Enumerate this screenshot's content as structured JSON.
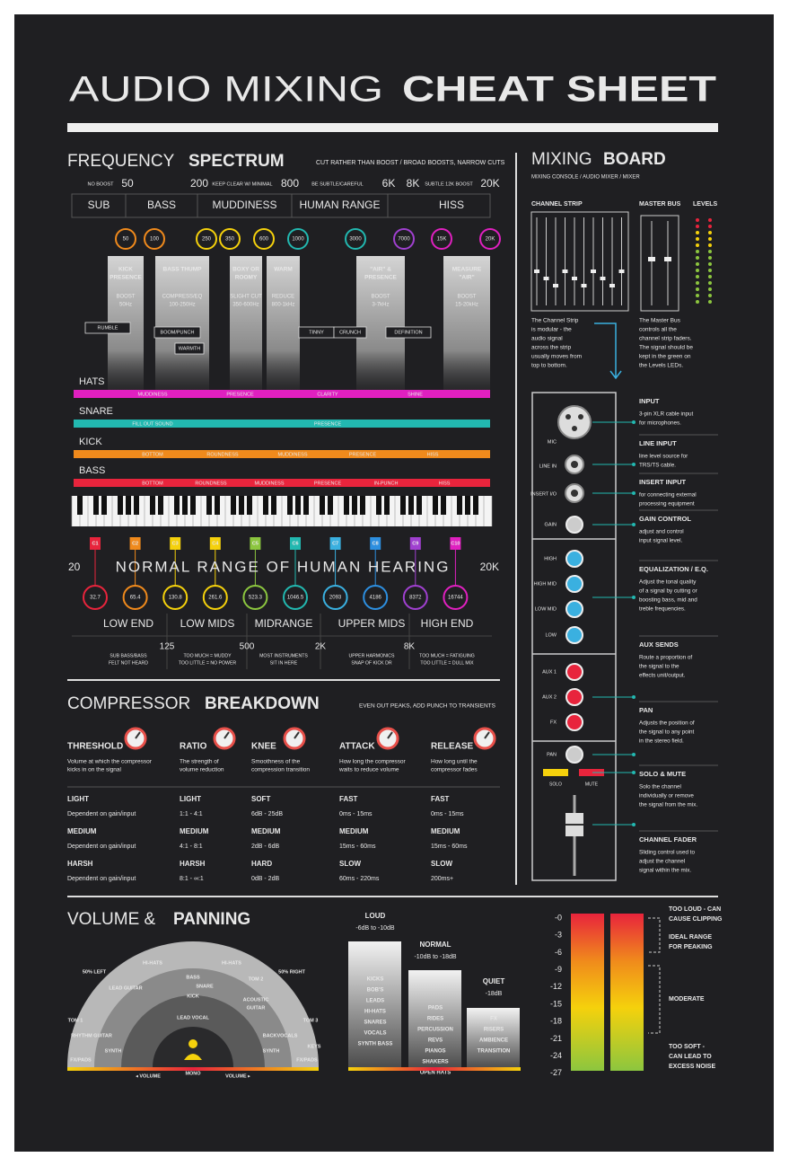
{
  "header": {
    "title_light": "AUDIO MIXING",
    "title_bold": "CHEAT SHEET"
  },
  "frequency": {
    "title": "FREQUENCY",
    "title_accent": "SPECTRUM",
    "note": "CUT RATHER THAN BOOST / BROAD BOOSTS, NARROW CUTS",
    "scale": [
      "NO BOOST",
      "50",
      "200",
      "KEEP CLEAR W/ MINIMAL",
      "800",
      "BE SUBTLE/CAREFUL",
      "6K",
      "8K",
      "SUBTLE 12K BOOST",
      "20K"
    ],
    "regions": [
      "SUB",
      "BASS",
      "MUDDINESS",
      "HUMAN RANGE",
      "HISS"
    ],
    "markers": [
      "50",
      "100",
      "250",
      "350",
      "600",
      "1000",
      "3000",
      "7000",
      "15K",
      "20K"
    ],
    "columns": [
      {
        "title": [
          "KICK",
          "PRESENCE"
        ],
        "text": [
          "BOOST",
          "50Hz"
        ]
      },
      {
        "title": [
          "BASS THUMP"
        ],
        "text": [
          "COMPRESS/EQ",
          "100-250Hz"
        ]
      },
      {
        "title": [
          "BOXY OR",
          "ROOMY"
        ],
        "text": [
          "SLIGHT CUT",
          "350-600Hz"
        ]
      },
      {
        "title": [
          "WARM"
        ],
        "text": [
          "REDUCE",
          "800-1kHz"
        ]
      },
      {
        "title": [
          "\"AIR\" &",
          "PRESENCE"
        ],
        "text": [
          "BOOST",
          "3-7kHz"
        ]
      },
      {
        "title": [
          "MEASURE",
          "\"AIR\""
        ],
        "text": [
          "BOOST",
          "15-20kHz"
        ]
      }
    ],
    "tags": [
      "RUMBLE",
      "BOOM/PUNCH",
      "WARMTH",
      "TINNY",
      "CRUNCH",
      "DEFINITION"
    ],
    "instruments": [
      {
        "name": "HATS",
        "labels": [
          "MUDDINESS",
          "PRESENCE",
          "CLARITY",
          "SHINE"
        ]
      },
      {
        "name": "SNARE",
        "labels": [
          "FILL OUT SOUND",
          "PRESENCE"
        ]
      },
      {
        "name": "KICK",
        "labels": [
          "BOTTOM",
          "ROUNDNESS",
          "MUDDINESS",
          "PRESENCE",
          "HISS"
        ]
      },
      {
        "name": "BASS",
        "labels": [
          "BOTTOM",
          "ROUNDNESS",
          "MUDDINESS",
          "PRESENCE",
          "IN-PUNCH",
          "HISS"
        ]
      }
    ],
    "notes": [
      "C1",
      "C2",
      "C3",
      "C4",
      "C5",
      "C6",
      "C7",
      "C8",
      "C9",
      "C10"
    ],
    "pitches": [
      "32.7",
      "65.4",
      "130.8",
      "261.6",
      "523.3",
      "1046.5",
      "2093",
      "4186",
      "8372",
      "16744"
    ],
    "range_label": "NORMAL RANGE OF HUMAN HEARING",
    "range_min": "20",
    "range_max": "20K",
    "bands": [
      "LOW END",
      "LOW MIDS",
      "MIDRANGE",
      "UPPER MIDS",
      "HIGH END"
    ],
    "band_edges": [
      "125",
      "500",
      "2K",
      "8K"
    ],
    "band_notes": [
      [
        "SUB BASS/BASS",
        "FELT NOT HEARD"
      ],
      [
        "TOO MUCH = MUDDY",
        "TOO LITTLE = NO POWER"
      ],
      [
        "MOST INSTRUMENTS",
        "SIT IN HERE"
      ],
      [
        "UPPER HARMONICS",
        "SNAP OF KICK DR"
      ],
      [
        "TOO MUCH = FATIGUING",
        "TOO LITTLE = DULL MIX"
      ]
    ]
  },
  "compressor": {
    "title": "COMPRESSOR",
    "title_accent": "BREAKDOWN",
    "note": "EVEN OUT PEAKS, ADD PUNCH TO TRANSIENTS",
    "params": [
      {
        "name": "THRESHOLD",
        "desc": [
          "Volume at which the compressor",
          "kicks in on the signal"
        ],
        "levels": [
          {
            "label": "LIGHT",
            "value": "Dependent on gain/input"
          },
          {
            "label": "MEDIUM",
            "value": "Dependent on gain/input"
          },
          {
            "label": "HARSH",
            "value": "Dependent on gain/input"
          }
        ]
      },
      {
        "name": "RATIO",
        "desc": [
          "The strength of",
          "volume reduction"
        ],
        "levels": [
          {
            "label": "LIGHT",
            "value": "1:1 - 4:1"
          },
          {
            "label": "MEDIUM",
            "value": "4:1 - 8:1"
          },
          {
            "label": "HARSH",
            "value": "8:1 - ∞:1"
          }
        ]
      },
      {
        "name": "KNEE",
        "desc": [
          "Smoothness of the",
          "compression transition"
        ],
        "levels": [
          {
            "label": "SOFT",
            "value": "6dB - 25dB"
          },
          {
            "label": "MEDIUM",
            "value": "2dB - 6dB"
          },
          {
            "label": "HARD",
            "value": "0dB - 2dB"
          }
        ]
      },
      {
        "name": "ATTACK",
        "desc": [
          "How long the compressor",
          "waits to reduce volume"
        ],
        "levels": [
          {
            "label": "FAST",
            "value": "0ms - 15ms"
          },
          {
            "label": "MEDIUM",
            "value": "15ms - 60ms"
          },
          {
            "label": "SLOW",
            "value": "60ms - 220ms"
          }
        ]
      },
      {
        "name": "RELEASE",
        "desc": [
          "How long until the",
          "compressor fades"
        ],
        "levels": [
          {
            "label": "FAST",
            "value": "0ms - 15ms"
          },
          {
            "label": "MEDIUM",
            "value": "15ms - 60ms"
          },
          {
            "label": "SLOW",
            "value": "200ms+"
          }
        ]
      }
    ]
  },
  "mixing": {
    "title": "MIXING",
    "title_accent": "BOARD",
    "subtitle": "MIXING CONSOLE / AUDIO MIXER / MIXER",
    "labels": [
      "CHANNEL STRIP",
      "MASTER BUS",
      "LEVELS"
    ],
    "channel_text": [
      "The Channel Strip",
      "is modular - the",
      "audio signal",
      "across the strip",
      "usually moves from",
      "top to bottom."
    ],
    "master_text": [
      "The Master Bus",
      "controls all the",
      "channel strip faders.",
      "The signal should be",
      "kept in the green on",
      "the Levels LEDs."
    ],
    "strip": [
      "MIC",
      "LINE IN",
      "INSERT I/O",
      "GAIN",
      "HIGH",
      "HIGH MID",
      "LOW MID",
      "LOW",
      "AUX 1",
      "AUX 2",
      "FX",
      "PAN",
      "SOLO",
      "MUTE"
    ],
    "controls": [
      {
        "name": "INPUT",
        "desc": [
          "3-pin XLR cable input",
          "for microphones."
        ]
      },
      {
        "name": "LINE INPUT",
        "desc": [
          "line level source for",
          "TRS/TS cable."
        ]
      },
      {
        "name": "INSERT INPUT",
        "desc": [
          "for connecting external",
          "processing equipment"
        ]
      },
      {
        "name": "GAIN CONTROL",
        "desc": [
          "adjust and control",
          "input signal level."
        ]
      },
      {
        "name": "EQUALIZATION / E.Q.",
        "desc": [
          "Adjust the tonal quality",
          "of a signal by cutting or",
          "boosting bass, mid and",
          "treble frequencies."
        ]
      },
      {
        "name": "AUX SENDS",
        "desc": [
          "Route a proportion of",
          "the signal to the",
          "effects unit/output."
        ]
      },
      {
        "name": "PAN",
        "desc": [
          "Adjusts the position of",
          "the signal to any point",
          "in the stereo field."
        ]
      },
      {
        "name": "SOLO & MUTE",
        "desc": [
          "Solo the channel",
          "individually or remove",
          "the signal from the mix."
        ]
      },
      {
        "name": "CHANNEL FADER",
        "desc": [
          "Sliding control used to",
          "adjust the channel",
          "signal within the mix."
        ]
      }
    ]
  },
  "volume": {
    "title": "VOLUME &",
    "title_accent": "PANNING",
    "arc_labels": [
      "50% LEFT",
      "HI-HATS",
      "HI-HATS",
      "50% RIGHT",
      "LEAD GUITAR",
      "BASS",
      "SNARE",
      "KICK",
      "TOM 2",
      "ACOUSTIC",
      "GUITAR",
      "LEAD VOCAL",
      "TOM 1",
      "RHYTHM GUITAR",
      "SYNTH",
      "FX/PADS",
      "TOM 3",
      "BACKVOCALS",
      "SYNTH",
      "KEYS",
      "FX/PADS",
      "MONO",
      "◂ VOLUME",
      "VOLUME ▸"
    ],
    "levels": [
      {
        "name": "LOUD",
        "range": "-6dB to -10dB",
        "items": [
          "KICKS",
          "BOB'S",
          "LEADS",
          "HI-HATS",
          "SNARES",
          "VOCALS",
          "SYNTH BASS"
        ]
      },
      {
        "name": "NORMAL",
        "range": "-10dB to -18dB",
        "items": [
          "PADS",
          "RIDES",
          "PERCUSSION",
          "REVS",
          "PIANOS",
          "SHAKERS",
          "OPEN HATS"
        ]
      },
      {
        "name": "QUIET",
        "range": "-18dB",
        "items": [
          "FX",
          "RISERS",
          "AMBIENCE",
          "TRANSITION"
        ]
      }
    ],
    "meter_scale": [
      "-0",
      "-3",
      "-6",
      "-9",
      "-12",
      "-15",
      "-18",
      "-21",
      "-24",
      "-27"
    ],
    "meter_notes": [
      [
        "TOO LOUD - CAN",
        "CAUSE CLIPPING"
      ],
      [
        "IDEAL RANGE",
        "FOR PEAKING"
      ],
      [
        "MODERATE"
      ],
      [
        "TOO SOFT -",
        "CAN LEAD TO",
        "EXCESS NOISE"
      ]
    ]
  }
}
